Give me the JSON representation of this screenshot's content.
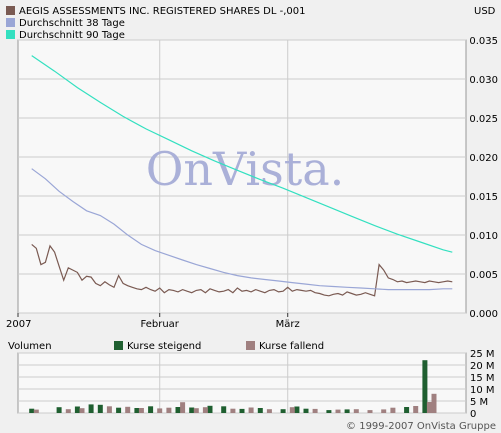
{
  "currency": "USD",
  "watermark": "OnVista.",
  "copyright": "© 1999-2007 OnVista Gruppe",
  "colors": {
    "background": "#f0f0f0",
    "plot_bg": "#f8f8f8",
    "grid": "#cccccc",
    "price": "#7a5a52",
    "ma38": "#9aa6d6",
    "ma90": "#33e0c0",
    "vol_up": "#1f5f30",
    "vol_down": "#a08080",
    "watermark": "#aab0d8"
  },
  "legend": [
    {
      "label": "AEGIS ASSESSMENTS INC. REGISTERED SHARES DL -,001",
      "color": "#7a5a52"
    },
    {
      "label": "Durchschnitt 38 Tage",
      "color": "#9aa6d6"
    },
    {
      "label": "Durchschnitt 90 Tage",
      "color": "#33e0c0"
    }
  ],
  "volume_legend": {
    "title": "Volumen",
    "up_label": "Kurse steigend",
    "down_label": "Kurse fallend"
  },
  "chart_data": [
    {
      "type": "line",
      "x_ticks": [
        "2007",
        "Februar",
        "März"
      ],
      "x_tick_days": [
        0,
        31,
        59
      ],
      "x_range_days": [
        0,
        98
      ],
      "ylim": [
        0,
        0.035
      ],
      "y_ticks": [
        "0.035",
        "0.030",
        "0.025",
        "0.020",
        "0.015",
        "0.010",
        "0.005",
        "0.000"
      ],
      "y_tick_values": [
        0.035,
        0.03,
        0.025,
        0.02,
        0.015,
        0.01,
        0.005,
        0
      ],
      "grid": true,
      "series": [
        {
          "name": "AEGIS ASSESSMENTS INC. REGISTERED SHARES DL -,001",
          "day": [
            3,
            4,
            5,
            6,
            7,
            8,
            9,
            10,
            11,
            12,
            13,
            14,
            15,
            16,
            17,
            18,
            19,
            20,
            21,
            22,
            23,
            24,
            25,
            26,
            27,
            28,
            29,
            30,
            31,
            32,
            33,
            34,
            35,
            36,
            37,
            38,
            39,
            40,
            41,
            42,
            43,
            44,
            45,
            46,
            47,
            48,
            49,
            50,
            51,
            52,
            53,
            54,
            55,
            56,
            57,
            58,
            59,
            60,
            61,
            62,
            63,
            64,
            65,
            66,
            67,
            68,
            69,
            70,
            71,
            72,
            73,
            74,
            75,
            76,
            77,
            78,
            79,
            80,
            81,
            82,
            83,
            84,
            85,
            86,
            87,
            88,
            89,
            90,
            91,
            92,
            93,
            94,
            95
          ],
          "values": [
            0.0088,
            0.0083,
            0.0062,
            0.0065,
            0.0086,
            0.0078,
            0.006,
            0.0042,
            0.0058,
            0.0055,
            0.0052,
            0.0042,
            0.0047,
            0.0046,
            0.0038,
            0.0035,
            0.004,
            0.0036,
            0.0033,
            0.0048,
            0.0038,
            0.0035,
            0.0033,
            0.0031,
            0.003,
            0.0033,
            0.003,
            0.0028,
            0.0032,
            0.0026,
            0.003,
            0.0029,
            0.0027,
            0.003,
            0.0028,
            0.0026,
            0.0029,
            0.003,
            0.0026,
            0.0031,
            0.0029,
            0.0027,
            0.0028,
            0.003,
            0.0026,
            0.0032,
            0.0028,
            0.0029,
            0.0027,
            0.003,
            0.0028,
            0.0026,
            0.0029,
            0.003,
            0.0027,
            0.0028,
            0.0033,
            0.0028,
            0.003,
            0.0029,
            0.0028,
            0.0029,
            0.0026,
            0.0025,
            0.0023,
            0.0022,
            0.0024,
            0.0025,
            0.0023,
            0.0027,
            0.0025,
            0.0023,
            0.0024,
            0.0026,
            0.0024,
            0.0022,
            0.0062,
            0.0055,
            0.0045,
            0.0043,
            0.004,
            0.0041,
            0.0039,
            0.004,
            0.0041,
            0.004,
            0.0039,
            0.0041,
            0.004,
            0.0039,
            0.004,
            0.0041,
            0.004
          ]
        },
        {
          "name": "Durchschnitt 38 Tage",
          "day": [
            3,
            6,
            9,
            12,
            15,
            18,
            21,
            24,
            27,
            30,
            33,
            36,
            39,
            42,
            45,
            48,
            51,
            54,
            57,
            60,
            63,
            66,
            69,
            72,
            75,
            78,
            81,
            84,
            87,
            90,
            93,
            95
          ],
          "values": [
            0.0185,
            0.0172,
            0.0156,
            0.0143,
            0.0131,
            0.0125,
            0.0114,
            0.01,
            0.0088,
            0.008,
            0.0074,
            0.0068,
            0.0062,
            0.0057,
            0.0052,
            0.0048,
            0.0045,
            0.0043,
            0.0041,
            0.0039,
            0.0037,
            0.0035,
            0.0034,
            0.0033,
            0.0032,
            0.0031,
            0.003,
            0.003,
            0.003,
            0.003,
            0.0031,
            0.0031
          ]
        },
        {
          "name": "Durchschnitt 90 Tage",
          "day": [
            3,
            8,
            13,
            18,
            23,
            28,
            33,
            38,
            43,
            48,
            53,
            58,
            63,
            68,
            73,
            78,
            83,
            88,
            93,
            95
          ],
          "values": [
            0.033,
            0.031,
            0.0289,
            0.027,
            0.0252,
            0.0236,
            0.0222,
            0.0208,
            0.0195,
            0.0183,
            0.0171,
            0.016,
            0.0148,
            0.0136,
            0.0124,
            0.0112,
            0.0101,
            0.0091,
            0.0081,
            0.0078
          ]
        }
      ]
    },
    {
      "type": "bar",
      "title": "Volumen",
      "ylim": [
        0,
        25
      ],
      "y_ticks": [
        "25 M",
        "20 M",
        "15 M",
        "10 M",
        "5 M",
        "0"
      ],
      "y_tick_values": [
        25,
        20,
        15,
        10,
        5,
        0
      ],
      "x_range_days": [
        0,
        98
      ],
      "series": [
        {
          "name": "Kurse steigend",
          "day": [
            3,
            9,
            13,
            16,
            18,
            22,
            26,
            29,
            35,
            38,
            42,
            45,
            49,
            53,
            58,
            61,
            63,
            68,
            72,
            85,
            89
          ],
          "values": [
            1.8,
            2.4,
            2.7,
            3.6,
            3.4,
            2.2,
            2.1,
            2.8,
            2.5,
            2.3,
            3.0,
            2.8,
            1.7,
            2.1,
            1.6,
            2.7,
            1.8,
            1.2,
            1.5,
            2.5,
            22.0
          ]
        },
        {
          "name": "Kurse fallend",
          "day": [
            4,
            11,
            14,
            20,
            24,
            27,
            31,
            33,
            36,
            39,
            41,
            47,
            51,
            55,
            60,
            65,
            70,
            74,
            77,
            80,
            82,
            87,
            90,
            91
          ],
          "values": [
            1.4,
            1.6,
            2.0,
            2.8,
            2.6,
            2.1,
            1.9,
            2.2,
            4.5,
            2.0,
            2.4,
            1.8,
            2.3,
            1.6,
            2.4,
            1.7,
            1.4,
            1.6,
            1.2,
            1.5,
            2.2,
            2.9,
            4.6,
            8.0
          ]
        }
      ]
    }
  ]
}
